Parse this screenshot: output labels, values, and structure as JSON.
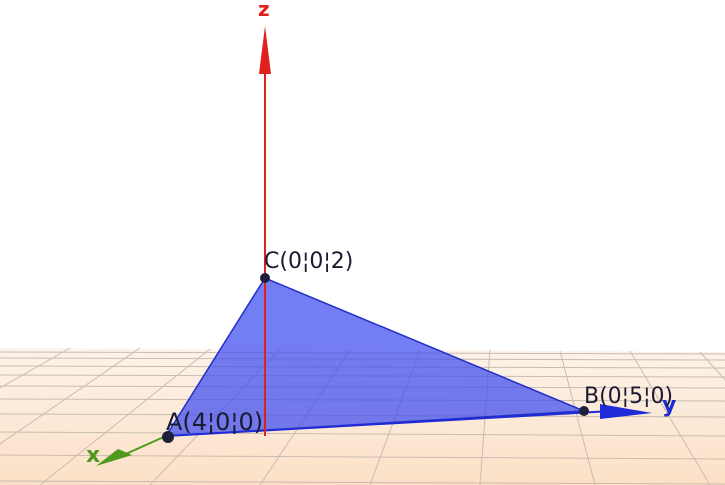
{
  "scene": {
    "axes": {
      "x": {
        "label": "x",
        "color": "#4f9a1c"
      },
      "y": {
        "label": "y",
        "color": "#1f2bd6"
      },
      "z": {
        "label": "z",
        "color": "#e0201b"
      }
    },
    "points": {
      "A": {
        "label": "A(4¦0¦0)"
      },
      "B": {
        "label": "B(0¦5¦0)"
      },
      "C": {
        "label": "C(0¦0¦2)"
      }
    },
    "colors": {
      "triangle_fill": "#3d4cf0",
      "triangle_edge": "#2230c8",
      "floor": "#fde8d4",
      "grid": "#b8aea4",
      "point": "#1f1f3a"
    }
  }
}
